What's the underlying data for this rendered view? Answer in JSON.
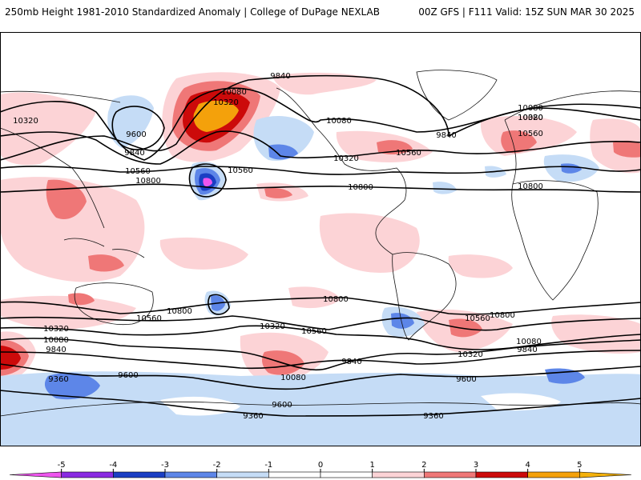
{
  "header": {
    "left_title": "250mb Height 1981-2010 Standardized Anomaly | College of DuPage NEXLAB",
    "right_title": "00Z GFS | F111 Valid: 15Z SUN MAR 30 2025"
  },
  "colors": {
    "land_outline": "#111111",
    "contour": "#000000",
    "pos1": "#fcd3d6",
    "pos2": "#ef7777",
    "pos3": "#cc0a0a",
    "pos4": "#f4a10b",
    "neg1": "#c5dcf6",
    "neg2": "#5d86e8",
    "neg3": "#1b3fc4",
    "neg5": "#ee55ee"
  },
  "contour_labels": [
    {
      "text": "9840"
    },
    {
      "text": "10080"
    },
    {
      "text": "10320"
    },
    {
      "text": "10320"
    },
    {
      "text": "10080"
    },
    {
      "text": "9600"
    },
    {
      "text": "9840"
    },
    {
      "text": "10560"
    },
    {
      "text": "10800"
    },
    {
      "text": "10560"
    },
    {
      "text": "10080"
    },
    {
      "text": "10320"
    },
    {
      "text": "9840"
    },
    {
      "text": "10560"
    },
    {
      "text": "10080"
    },
    {
      "text": "10320"
    },
    {
      "text": "10560"
    },
    {
      "text": "10800"
    },
    {
      "text": "10800"
    },
    {
      "text": "10800"
    },
    {
      "text": "10560"
    },
    {
      "text": "10320"
    },
    {
      "text": "10560"
    },
    {
      "text": "10800"
    },
    {
      "text": "10800"
    },
    {
      "text": "10560"
    },
    {
      "text": "10320"
    },
    {
      "text": "10080"
    },
    {
      "text": "9840"
    },
    {
      "text": "10320"
    },
    {
      "text": "10080"
    },
    {
      "text": "9840"
    },
    {
      "text": "9360"
    },
    {
      "text": "9600"
    },
    {
      "text": "10080"
    },
    {
      "text": "9840"
    },
    {
      "text": "9600"
    },
    {
      "text": "9600"
    },
    {
      "text": "9360"
    },
    {
      "text": "9360"
    }
  ],
  "colorbar": {
    "ticks": [
      "-5",
      "-4",
      "-3",
      "-2",
      "-1",
      "0",
      "1",
      "2",
      "3",
      "4",
      "5"
    ],
    "colors": [
      "#ee55ee",
      "#8a2be2",
      "#1b3fc4",
      "#5d86e8",
      "#c5dcf6",
      "#ffffff",
      "#ffffff",
      "#fcd3d6",
      "#ef7777",
      "#cc0a0a",
      "#f4a10b",
      "#f4b10b"
    ]
  }
}
